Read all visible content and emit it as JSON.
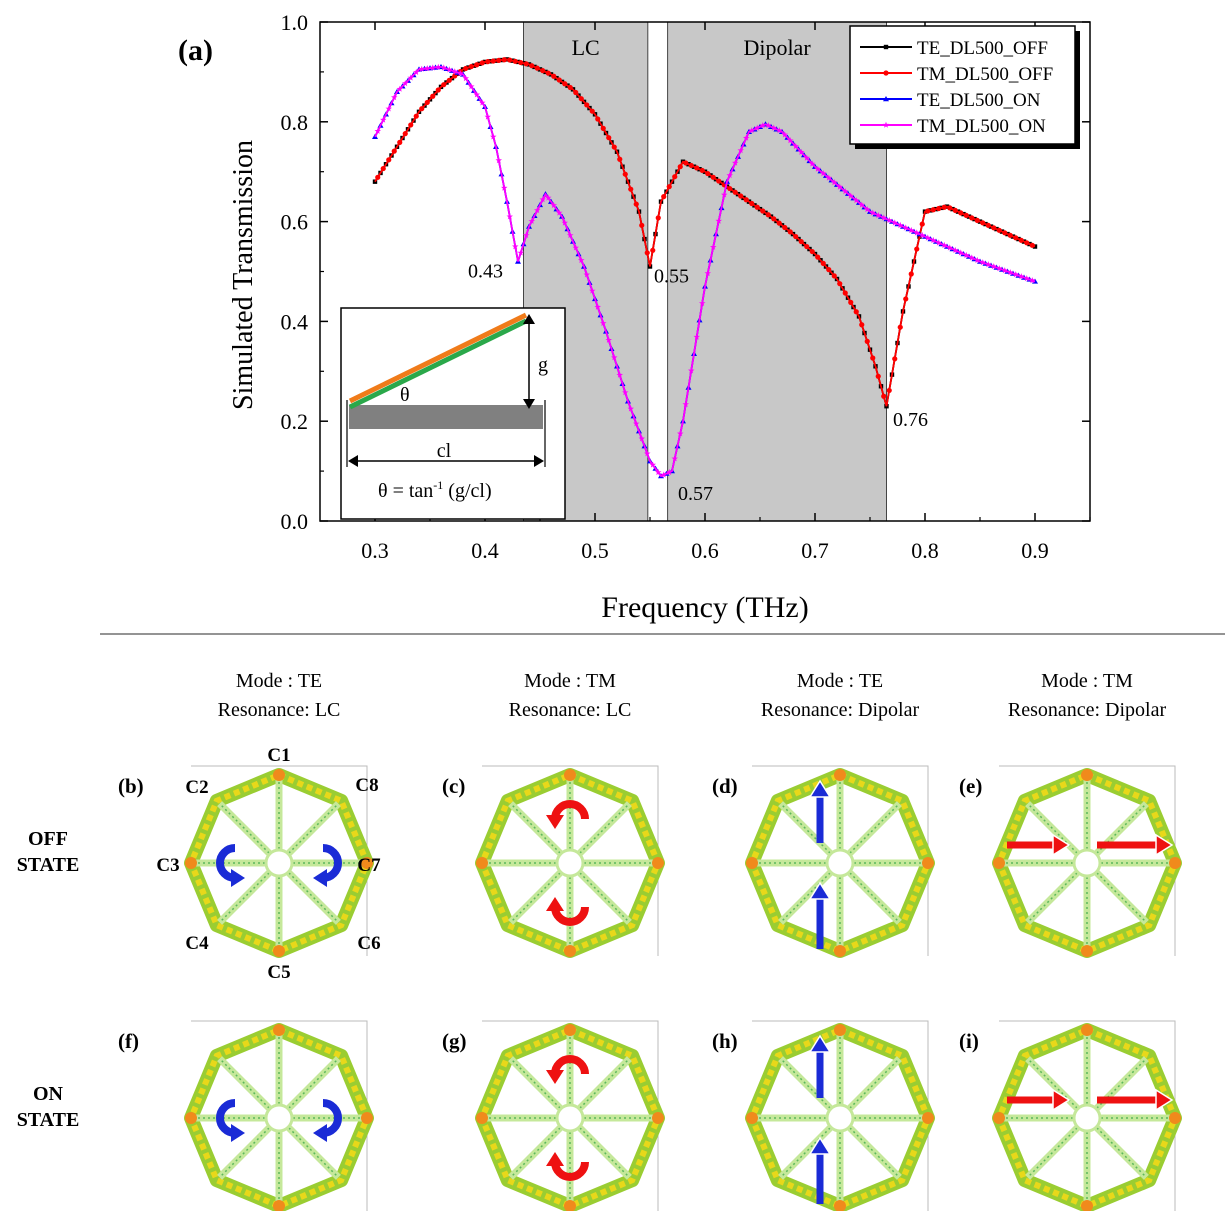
{
  "chart_data": {
    "type": "line",
    "panel_label": "(a)",
    "xlabel": "Frequency (THz)",
    "ylabel": "Simulated Transmission",
    "xlim": [
      0.25,
      0.95
    ],
    "ylim": [
      0.0,
      1.0
    ],
    "xticks": [
      "0.3",
      "0.4",
      "0.5",
      "0.6",
      "0.7",
      "0.8",
      "0.9"
    ],
    "yticks": [
      "0.0",
      "0.2",
      "0.4",
      "0.6",
      "0.8",
      "1.0"
    ],
    "grid": false,
    "legend_position": "top-right",
    "bands": [
      {
        "label": "LC",
        "x0": 0.435,
        "x1": 0.548
      },
      {
        "label": "Dipolar",
        "x0": 0.566,
        "x1": 0.765
      }
    ],
    "annotations": [
      {
        "text": "0.43",
        "x": 0.43,
        "y": 0.52
      },
      {
        "text": "0.55",
        "x": 0.55,
        "y": 0.51
      },
      {
        "text": "0.57",
        "x": 0.57,
        "y": 0.09
      },
      {
        "text": "0.76",
        "x": 0.76,
        "y": 0.23
      }
    ],
    "series": [
      {
        "name": "TE_DL500_OFF",
        "color": "#000000",
        "marker": "square",
        "x": [
          0.3,
          0.32,
          0.34,
          0.36,
          0.38,
          0.4,
          0.42,
          0.44,
          0.46,
          0.48,
          0.5,
          0.52,
          0.54,
          0.55,
          0.56,
          0.58,
          0.6,
          0.62,
          0.64,
          0.66,
          0.68,
          0.7,
          0.72,
          0.74,
          0.755,
          0.765,
          0.78,
          0.8,
          0.82,
          0.85,
          0.9
        ],
        "y": [
          0.68,
          0.75,
          0.82,
          0.87,
          0.905,
          0.92,
          0.925,
          0.915,
          0.895,
          0.865,
          0.815,
          0.74,
          0.62,
          0.51,
          0.64,
          0.72,
          0.7,
          0.67,
          0.64,
          0.61,
          0.575,
          0.535,
          0.485,
          0.41,
          0.31,
          0.23,
          0.42,
          0.62,
          0.63,
          0.6,
          0.55
        ]
      },
      {
        "name": "TM_DL500_OFF",
        "color": "#ff0000",
        "marker": "circle",
        "x": [
          0.3,
          0.32,
          0.34,
          0.36,
          0.38,
          0.4,
          0.42,
          0.44,
          0.46,
          0.48,
          0.5,
          0.52,
          0.54,
          0.55,
          0.56,
          0.58,
          0.6,
          0.62,
          0.64,
          0.66,
          0.68,
          0.7,
          0.72,
          0.74,
          0.755,
          0.765,
          0.78,
          0.8,
          0.82,
          0.85,
          0.9
        ],
        "y": [
          0.68,
          0.75,
          0.82,
          0.87,
          0.905,
          0.92,
          0.925,
          0.915,
          0.895,
          0.865,
          0.815,
          0.74,
          0.62,
          0.51,
          0.64,
          0.72,
          0.7,
          0.67,
          0.64,
          0.61,
          0.575,
          0.535,
          0.485,
          0.41,
          0.31,
          0.23,
          0.42,
          0.62,
          0.63,
          0.6,
          0.55
        ]
      },
      {
        "name": "TE_DL500_ON",
        "color": "#0000ff",
        "marker": "triangle",
        "x": [
          0.3,
          0.32,
          0.34,
          0.36,
          0.38,
          0.4,
          0.41,
          0.42,
          0.43,
          0.44,
          0.455,
          0.47,
          0.49,
          0.51,
          0.53,
          0.55,
          0.56,
          0.57,
          0.58,
          0.6,
          0.62,
          0.64,
          0.655,
          0.67,
          0.7,
          0.75,
          0.8,
          0.85,
          0.9
        ],
        "y": [
          0.77,
          0.86,
          0.905,
          0.91,
          0.895,
          0.83,
          0.75,
          0.64,
          0.52,
          0.59,
          0.655,
          0.61,
          0.51,
          0.38,
          0.24,
          0.12,
          0.09,
          0.1,
          0.2,
          0.47,
          0.68,
          0.78,
          0.795,
          0.78,
          0.71,
          0.62,
          0.57,
          0.52,
          0.48
        ]
      },
      {
        "name": "TM_DL500_ON",
        "color": "#ff00ff",
        "marker": "star",
        "x": [
          0.3,
          0.32,
          0.34,
          0.36,
          0.38,
          0.4,
          0.41,
          0.42,
          0.43,
          0.44,
          0.455,
          0.47,
          0.49,
          0.51,
          0.53,
          0.55,
          0.56,
          0.57,
          0.58,
          0.6,
          0.62,
          0.64,
          0.655,
          0.67,
          0.7,
          0.75,
          0.8,
          0.85,
          0.9
        ],
        "y": [
          0.77,
          0.86,
          0.905,
          0.91,
          0.895,
          0.83,
          0.75,
          0.64,
          0.52,
          0.59,
          0.655,
          0.61,
          0.51,
          0.38,
          0.24,
          0.12,
          0.09,
          0.1,
          0.2,
          0.47,
          0.68,
          0.78,
          0.795,
          0.78,
          0.71,
          0.62,
          0.57,
          0.52,
          0.48
        ]
      }
    ]
  },
  "inset": {
    "theta": "θ",
    "g": "g",
    "cl": "cl",
    "formula_prefix": "θ = tan",
    "formula_exp": "-1",
    "formula_suffix": " (g/cl)"
  },
  "columns": [
    {
      "mode": "Mode : TE",
      "resonance": "Resonance: LC"
    },
    {
      "mode": "Mode : TM",
      "resonance": "Resonance: LC"
    },
    {
      "mode": "Mode : TE",
      "resonance": "Resonance: Dipolar"
    },
    {
      "mode": "Mode : TM",
      "resonance": "Resonance: Dipolar"
    }
  ],
  "rows": [
    {
      "line1": "OFF",
      "line2": "STATE"
    },
    {
      "line1": "ON",
      "line2": "STATE"
    }
  ],
  "panels": [
    {
      "label": "(b)",
      "arrows": "lc",
      "color": "#1a2bd6"
    },
    {
      "label": "(c)",
      "arrows": "lc-tm",
      "color": "#ee1111"
    },
    {
      "label": "(d)",
      "arrows": "up",
      "color": "#1a2bd6"
    },
    {
      "label": "(e)",
      "arrows": "right",
      "color": "#ee1111"
    },
    {
      "label": "(f)",
      "arrows": "lc",
      "color": "#1a2bd6"
    },
    {
      "label": "(g)",
      "arrows": "lc-tm",
      "color": "#ee1111"
    },
    {
      "label": "(h)",
      "arrows": "up",
      "color": "#1a2bd6"
    },
    {
      "label": "(i)",
      "arrows": "right",
      "color": "#ee1111"
    }
  ],
  "corners": [
    "C1",
    "C2",
    "C3",
    "C4",
    "C5",
    "C6",
    "C7",
    "C8"
  ]
}
